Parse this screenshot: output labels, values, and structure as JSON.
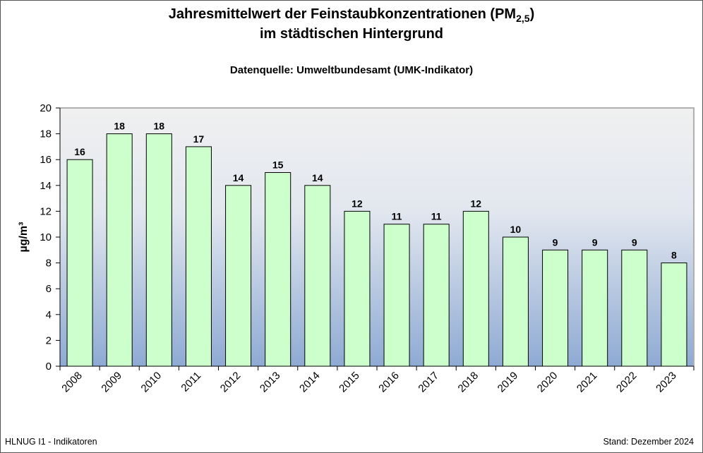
{
  "chart_data": {
    "type": "bar",
    "title_line1_main": "Jahresmittelwert der Feinstaubkonzentrationen (PM",
    "title_line1_sub": "2,5",
    "title_line1_end": ")",
    "title_line2": "im städtischen Hintergrund",
    "subtitle": "Datenquelle: Umweltbundesamt (UMK-Indikator)",
    "ylabel": "µg/m³",
    "xlabel": "",
    "ylim": [
      0,
      20
    ],
    "yticks": [
      0,
      2,
      4,
      6,
      8,
      10,
      12,
      14,
      16,
      18,
      20
    ],
    "categories": [
      "2008",
      "2009",
      "2010",
      "2011",
      "2012",
      "2013",
      "2014",
      "2015",
      "2016",
      "2017",
      "2018",
      "2019",
      "2020",
      "2021",
      "2022",
      "2023"
    ],
    "values": [
      16,
      18,
      18,
      17,
      14,
      15,
      14,
      12,
      11,
      11,
      12,
      10,
      9,
      9,
      9,
      8
    ],
    "data_labels": true,
    "grid": false,
    "bar_color": "#ccffcc",
    "background_gradient": [
      "#f0f0f0",
      "#8eaad3"
    ]
  },
  "footer": {
    "left": "HLNUG I1 - Indikatoren",
    "right": "Stand: Dezember 2024"
  }
}
